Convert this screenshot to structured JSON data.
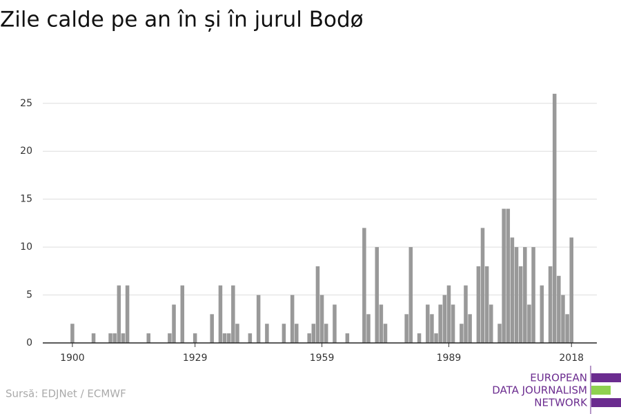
{
  "chart_data": {
    "type": "bar",
    "title": "Zile calde pe an în și în jurul Bodø",
    "x": [
      1900,
      1905,
      1909,
      1910,
      1911,
      1912,
      1913,
      1918,
      1923,
      1924,
      1926,
      1929,
      1933,
      1935,
      1936,
      1937,
      1938,
      1939,
      1942,
      1944,
      1946,
      1950,
      1952,
      1953,
      1956,
      1957,
      1958,
      1959,
      1960,
      1962,
      1965,
      1969,
      1970,
      1972,
      1973,
      1974,
      1979,
      1980,
      1982,
      1984,
      1985,
      1986,
      1987,
      1988,
      1989,
      1990,
      1992,
      1993,
      1994,
      1996,
      1997,
      1998,
      1999,
      2001,
      2002,
      2003,
      2004,
      2005,
      2006,
      2007,
      2008,
      2009,
      2011,
      2013,
      2014,
      2015,
      2016,
      2017,
      2018
    ],
    "values": [
      2,
      1,
      1,
      1,
      6,
      1,
      6,
      1,
      1,
      4,
      6,
      1,
      3,
      6,
      1,
      1,
      6,
      2,
      1,
      5,
      2,
      2,
      5,
      2,
      1,
      2,
      8,
      5,
      2,
      4,
      1,
      12,
      3,
      10,
      4,
      2,
      3,
      10,
      1,
      4,
      3,
      1,
      4,
      5,
      6,
      4,
      2,
      6,
      3,
      8,
      12,
      8,
      4,
      2,
      14,
      14,
      11,
      10,
      8,
      10,
      4,
      10,
      6,
      8,
      26,
      7,
      5,
      3,
      11
    ],
    "color": "#999999",
    "xlim": [
      1893,
      2024
    ],
    "xticks": [
      1900,
      1929,
      1959,
      1989,
      2018
    ],
    "ylim": [
      0,
      27
    ],
    "yticks": [
      0,
      5,
      10,
      15,
      20,
      25
    ],
    "grid": true
  },
  "source": "Sursă: EDJNet / ECMWF",
  "logo": [
    "EUROPEAN",
    "DATA JOURNALISM",
    "NETWORK"
  ]
}
